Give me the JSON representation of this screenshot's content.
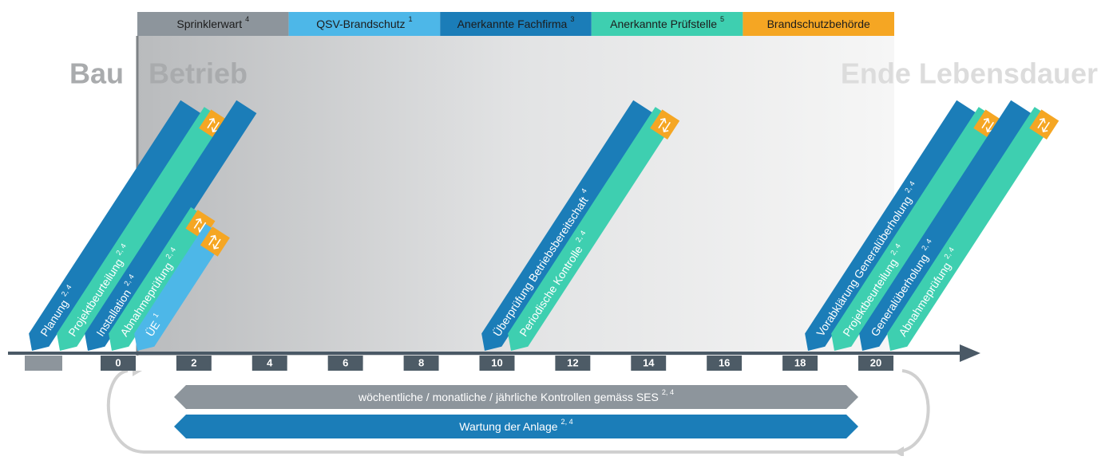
{
  "legend": [
    {
      "label": "Sprinklerwart",
      "sup": "4"
    },
    {
      "label": "QSV-Brandschutz",
      "sup": "1"
    },
    {
      "label": "Anerkannte Fachfirma",
      "sup": "3"
    },
    {
      "label": "Anerkannte Prüfstelle",
      "sup": "5"
    },
    {
      "label": "Brandschutzbehörde"
    }
  ],
  "phases": {
    "construction": "Bau",
    "operation": "Betrieb",
    "end": "Ende Lebensdauer"
  },
  "steps": [
    {
      "label": "Planung",
      "sup": "2, 4"
    },
    {
      "label": "Projektbeurteilung",
      "sup": "2, 4"
    },
    {
      "label": "Installation",
      "sup": "2, 4"
    },
    {
      "label": "Abnahmeprüfung",
      "sup": "2, 4"
    },
    {
      "label": "ÜE",
      "sup": "1"
    },
    {
      "label": "Überprüfung Betriebsbereitschaft",
      "sup": "4"
    },
    {
      "label": "Periodische Kontrolle",
      "sup": "2, 4"
    },
    {
      "label": "Vorabklärung Generalüberholung",
      "sup": "2, 4"
    },
    {
      "label": "Projektbeurteilung",
      "sup": "2, 4"
    },
    {
      "label": "Generalüberholung",
      "sup": "2, 4"
    },
    {
      "label": "Abnahmeprüfung",
      "sup": "2, 4"
    }
  ],
  "timeline": {
    "ticks": [
      0,
      2,
      4,
      6,
      8,
      10,
      12,
      14,
      16,
      18,
      20
    ]
  },
  "recurring": [
    {
      "label": "wöchentliche / monatliche / jährliche Kontrollen gemäss SES",
      "sup": "2, 4"
    },
    {
      "label": "Wartung der Anlage",
      "sup": "2, 4"
    }
  ]
}
